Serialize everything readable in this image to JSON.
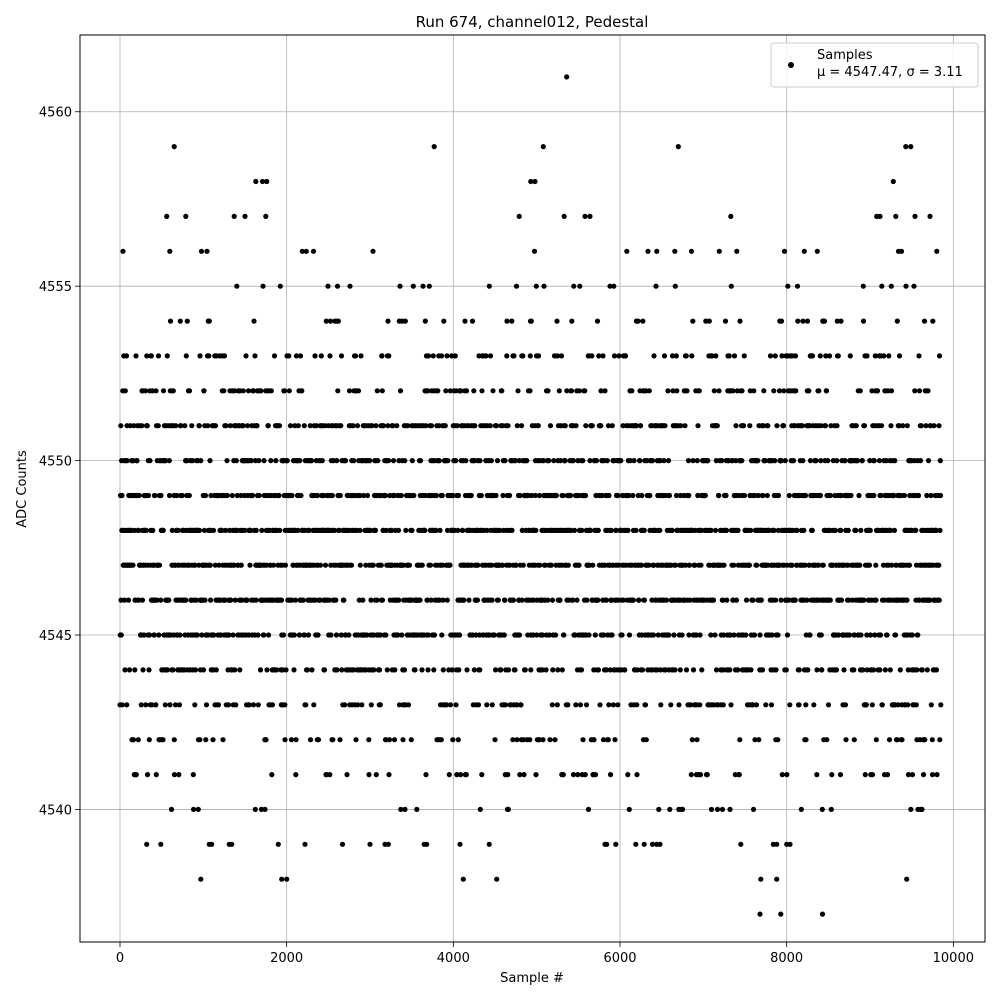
{
  "chart_data": {
    "type": "scatter",
    "title": "Run 674, channel012, Pedestal",
    "xlabel": "Sample #",
    "ylabel": "ADC Counts",
    "xlim": [
      -480,
      10380
    ],
    "ylim": [
      4536.2,
      4562.2
    ],
    "x_ticks": [
      0,
      2000,
      4000,
      6000,
      8000,
      10000
    ],
    "x_tick_labels": [
      "0",
      "2000",
      "4000",
      "6000",
      "8000",
      "10000"
    ],
    "y_ticks": [
      4540,
      4545,
      4550,
      4555,
      4560
    ],
    "y_tick_labels": [
      "4540",
      "4545",
      "4550",
      "4555",
      "4560"
    ],
    "grid": true,
    "legend": {
      "placement": "top-right",
      "entries": [
        {
          "label": "Samples",
          "stats": "μ = 4547.47, σ = 3.11",
          "marker": "dot",
          "color": "#000000"
        }
      ]
    },
    "series": [
      {
        "name": "Samples",
        "color": "#000000",
        "x_range": [
          0,
          9850
        ],
        "mean": 4547.47,
        "std": 3.11,
        "outlier_points": [
          [
            5360,
            4561
          ],
          [
            650,
            4559
          ],
          [
            3770,
            4559
          ],
          [
            5080,
            4559
          ],
          [
            6700,
            4559
          ],
          [
            9430,
            4559
          ],
          [
            9490,
            4559
          ],
          [
            1630,
            4558
          ],
          [
            1710,
            4558
          ],
          [
            1760,
            4558
          ],
          [
            4930,
            4558
          ],
          [
            4980,
            4558
          ],
          [
            9280,
            4558
          ],
          [
            560,
            4557
          ],
          [
            790,
            4557
          ],
          [
            1370,
            4557
          ],
          [
            1500,
            4557
          ],
          [
            1750,
            4557
          ],
          [
            4790,
            4557
          ],
          [
            5330,
            4557
          ],
          [
            5580,
            4557
          ],
          [
            5640,
            4557
          ],
          [
            7330,
            4557
          ],
          [
            9080,
            4557
          ],
          [
            9120,
            4557
          ],
          [
            9310,
            4557
          ],
          [
            9540,
            4557
          ],
          [
            9720,
            4557
          ],
          [
            970,
            4538
          ],
          [
            1940,
            4538
          ],
          [
            2000,
            4538
          ],
          [
            4120,
            4538
          ],
          [
            4520,
            4538
          ],
          [
            7690,
            4538
          ],
          [
            7880,
            4538
          ],
          [
            9440,
            4538
          ],
          [
            7680,
            4537
          ],
          [
            7930,
            4537
          ],
          [
            8430,
            4537
          ],
          [
            320,
            4539
          ],
          [
            490,
            4539
          ],
          [
            1070,
            4539
          ],
          [
            1100,
            4539
          ],
          [
            1310,
            4539
          ],
          [
            1340,
            4539
          ],
          [
            1900,
            4539
          ],
          [
            2220,
            4539
          ],
          [
            2670,
            4539
          ],
          [
            3000,
            4539
          ],
          [
            3180,
            4539
          ],
          [
            3220,
            4539
          ],
          [
            3650,
            4539
          ],
          [
            3680,
            4539
          ],
          [
            4080,
            4539
          ],
          [
            4430,
            4539
          ],
          [
            5820,
            4539
          ],
          [
            5840,
            4539
          ],
          [
            5950,
            4539
          ],
          [
            6190,
            4539
          ],
          [
            6290,
            4539
          ],
          [
            6390,
            4539
          ],
          [
            6440,
            4539
          ],
          [
            6480,
            4539
          ],
          [
            7450,
            4539
          ],
          [
            7840,
            4539
          ],
          [
            7880,
            4539
          ],
          [
            8000,
            4539
          ],
          [
            8040,
            4539
          ]
        ],
        "dense_levels": [
          4540,
          4541,
          4542,
          4543,
          4544,
          4545,
          4546,
          4547,
          4548,
          4549,
          4550,
          4551,
          4552,
          4553,
          4554,
          4555,
          4556
        ]
      }
    ]
  }
}
